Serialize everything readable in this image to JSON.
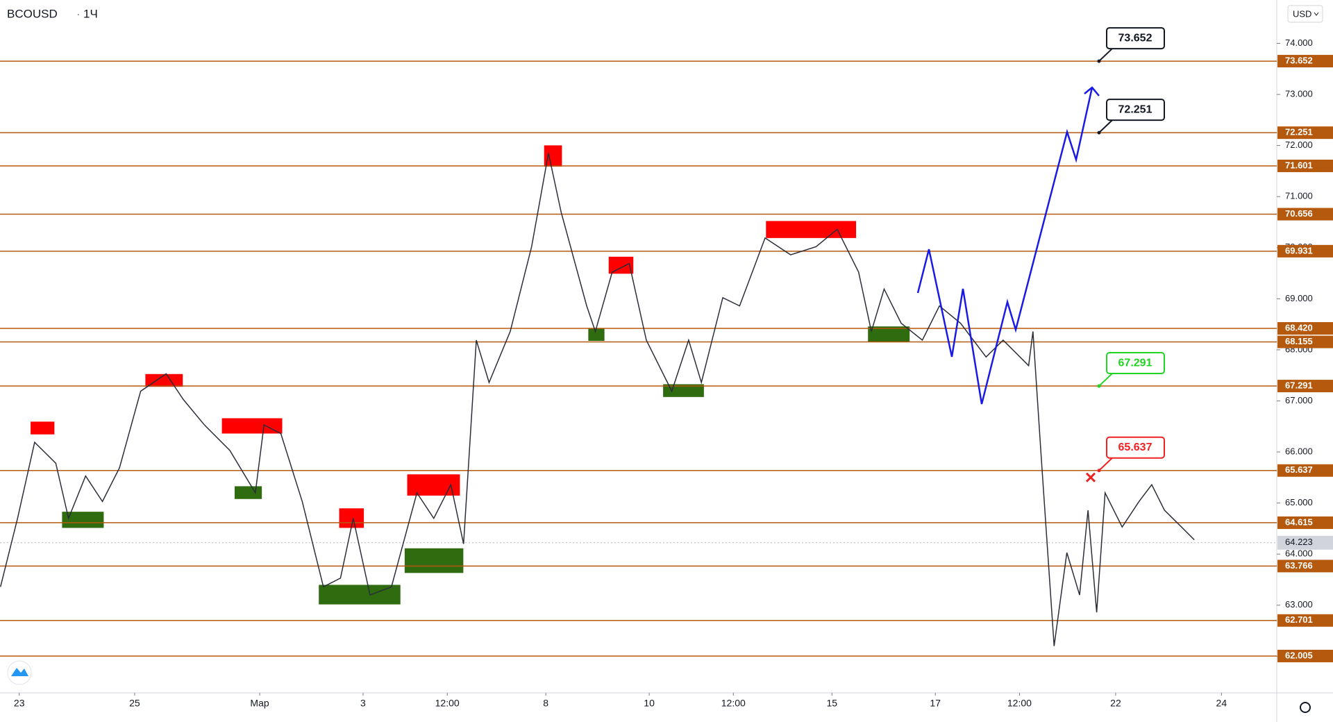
{
  "header": {
    "symbol": "BCOUSD",
    "interval": "1Ч",
    "currency": "USD"
  },
  "chart_data": {
    "type": "line",
    "color": "#2a2e39",
    "x": [
      -7.8,
      -0.7,
      6.4,
      15.2,
      20.5,
      27.6,
      34.6,
      41.7,
      50.5,
      61.1,
      68.2,
      77.0,
      87.6,
      98.2,
      101.8,
      108.8,
      117.7,
      126.5,
      133.6,
      138.9,
      145.9,
      154.8,
      165.4,
      172.4,
      179.5,
      184.8,
      190.1,
      195.4,
      204.2,
      213.1,
      220.1,
      225.4,
      236.0,
      239.6,
      246.6,
      253.7,
      260.8,
      271.4,
      278.4,
      283.7,
      292.6,
      299.6,
      310.2,
      320.8,
      331.4,
      340.2,
      349.1,
      354.4,
      359.7,
      366.8,
      375.6,
      382.7,
      391.5,
      402.1,
      409.2,
      419.8,
      421.6,
      425.1,
      430.4,
      435.7,
      441.0,
      444.5,
      448.1,
      451.6,
      458.7,
      465.7,
      471.0,
      476.3,
      483.4,
      488.7
    ],
    "values": [
      63.36,
      64.7,
      66.19,
      65.78,
      64.7,
      65.53,
      65.03,
      65.69,
      67.19,
      67.53,
      67.03,
      66.53,
      66.03,
      65.2,
      66.53,
      66.36,
      65.03,
      63.36,
      63.53,
      64.7,
      63.2,
      63.36,
      65.2,
      64.7,
      65.36,
      64.2,
      68.19,
      67.36,
      68.36,
      70.02,
      71.85,
      70.69,
      68.86,
      68.36,
      69.52,
      69.69,
      68.19,
      67.19,
      68.19,
      67.36,
      69.02,
      68.86,
      70.19,
      69.86,
      70.02,
      70.36,
      69.52,
      68.36,
      69.19,
      68.52,
      68.19,
      68.86,
      68.52,
      67.86,
      68.19,
      67.69,
      68.36,
      65.86,
      62.2,
      64.03,
      63.2,
      64.86,
      62.86,
      65.2,
      64.53,
      65.03,
      65.36,
      64.86,
      64.53,
      64.28
    ],
    "xlim": [
      -8,
      523
    ],
    "xticks": [
      {
        "value": 0,
        "label": "23"
      },
      {
        "value": 48,
        "label": "25"
      },
      {
        "value": 100,
        "label": "Мар"
      },
      {
        "value": 143,
        "label": "3"
      },
      {
        "value": 178,
        "label": "12:00"
      },
      {
        "value": 219,
        "label": "8"
      },
      {
        "value": 262,
        "label": "10"
      },
      {
        "value": 297,
        "label": "12:00"
      },
      {
        "value": 338,
        "label": "15"
      },
      {
        "value": 381,
        "label": "17"
      },
      {
        "value": 416,
        "label": "12:00"
      },
      {
        "value": 456,
        "label": "22"
      },
      {
        "value": 500,
        "label": "24"
      }
    ],
    "ylim": [
      61.284,
      74.849
    ],
    "yticks": [
      {
        "value": 62,
        "label": "62.000"
      },
      {
        "value": 63,
        "label": "63.000"
      },
      {
        "value": 64,
        "label": "64.000"
      },
      {
        "value": 65,
        "label": "65.000"
      },
      {
        "value": 66,
        "label": "66.000"
      },
      {
        "value": 67,
        "label": "67.000"
      },
      {
        "value": 68,
        "label": "68.000"
      },
      {
        "value": 69,
        "label": "69.000"
      },
      {
        "value": 70,
        "label": "70.000"
      },
      {
        "value": 71,
        "label": "71.000"
      },
      {
        "value": 72,
        "label": "72.000"
      },
      {
        "value": 73,
        "label": "73.000"
      },
      {
        "value": 74,
        "label": "74.000"
      }
    ],
    "level_color": "#b5590f",
    "levels": [
      {
        "value": 73.652,
        "label": "73.652"
      },
      {
        "value": 72.251,
        "label": "72.251"
      },
      {
        "value": 71.601,
        "label": "71.601"
      },
      {
        "value": 70.656,
        "label": "70.656"
      },
      {
        "value": 69.931,
        "label": "69.931"
      },
      {
        "value": 68.42,
        "label": "68.420"
      },
      {
        "value": 68.155,
        "label": "68.155"
      },
      {
        "value": 67.291,
        "label": "67.291"
      },
      {
        "value": 65.637,
        "label": "65.637"
      },
      {
        "value": 64.615,
        "label": "64.615"
      },
      {
        "value": 63.766,
        "label": "63.766"
      },
      {
        "value": 62.701,
        "label": "62.701"
      },
      {
        "value": 62.005,
        "label": "62.005"
      }
    ],
    "last_price": {
      "value": 64.223,
      "label": "64.223"
    },
    "annotations": [
      {
        "value": 73.652,
        "label": "73.652",
        "color": "#131722"
      },
      {
        "value": 72.251,
        "label": "72.251",
        "color": "#131722"
      },
      {
        "value": 67.291,
        "label": "67.291",
        "color": "#22d422"
      },
      {
        "value": 65.637,
        "label": "65.637",
        "color": "#ee2222"
      }
    ]
  }
}
